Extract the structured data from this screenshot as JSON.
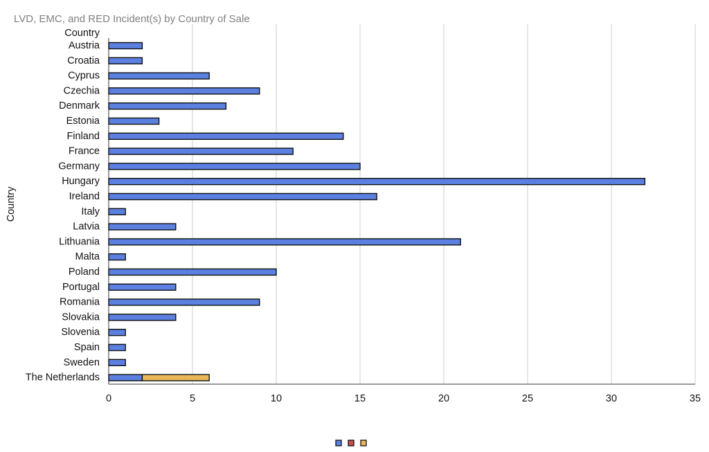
{
  "chart_data": {
    "type": "bar",
    "orientation": "horizontal",
    "stacked": true,
    "title": "LVD, EMC, and RED Incident(s) by Country of Sale",
    "ylabel": "Country",
    "category_header": "Country",
    "xlabel": "",
    "xlim": [
      0,
      35
    ],
    "x_ticks": [
      "0",
      "5",
      "10",
      "15",
      "20",
      "25",
      "30",
      "35"
    ],
    "grid": "vertical",
    "legend_position": "bottom",
    "categories": [
      "Austria",
      "Croatia",
      "Cyprus",
      "Czechia",
      "Denmark",
      "Estonia",
      "Finland",
      "France",
      "Germany",
      "Hungary",
      "Ireland",
      "Italy",
      "Latvia",
      "Lithuania",
      "Malta",
      "Poland",
      "Portugal",
      "Romania",
      "Slovakia",
      "Slovenia",
      "Spain",
      "Sweden",
      "The Netherlands"
    ],
    "series": [
      {
        "color": "#5b80e0",
        "values": [
          2,
          2,
          6,
          9,
          7,
          3,
          14,
          11,
          15,
          32,
          16,
          1,
          4,
          21,
          1,
          10,
          4,
          9,
          4,
          1,
          1,
          1,
          2
        ]
      },
      {
        "color": "#c8504a",
        "values": [
          0,
          0,
          0,
          0,
          0,
          0,
          0,
          0,
          0,
          0,
          0,
          0,
          0,
          0,
          0,
          0,
          0,
          0,
          0,
          0,
          0,
          0,
          0
        ]
      },
      {
        "color": "#e8b75a",
        "values": [
          0,
          0,
          0,
          0,
          0,
          0,
          0,
          0,
          0,
          0,
          0,
          0,
          0,
          0,
          0,
          0,
          0,
          0,
          0,
          0,
          0,
          0,
          4
        ]
      }
    ]
  }
}
